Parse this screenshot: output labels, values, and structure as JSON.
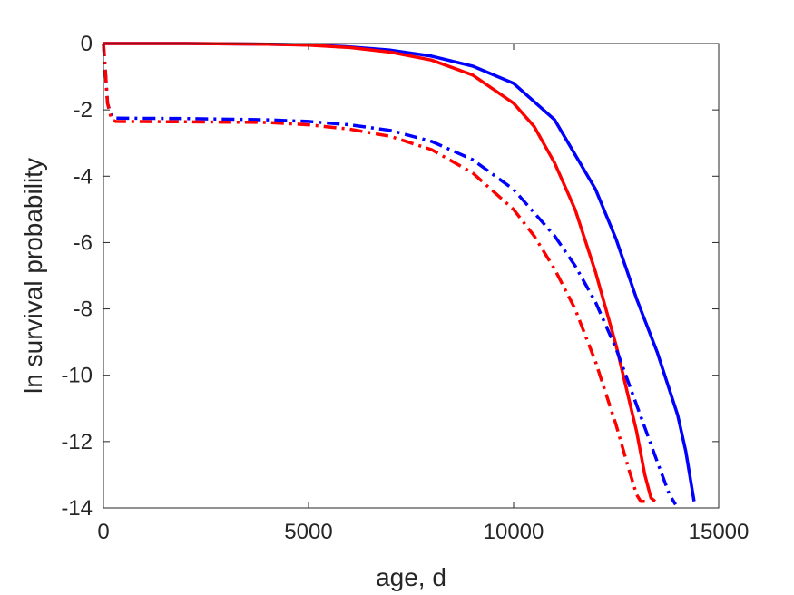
{
  "chart_data": {
    "type": "line",
    "title": "",
    "xlabel": "age, d",
    "ylabel": "ln survival probability",
    "xlim": [
      0,
      15000
    ],
    "ylim": [
      -14,
      0
    ],
    "xticks": [
      0,
      5000,
      10000,
      15000
    ],
    "xtick_labels": [
      "0",
      "5000",
      "10000",
      "15000"
    ],
    "yticks": [
      0,
      -2,
      -4,
      -6,
      -8,
      -10,
      -12,
      -14
    ],
    "ytick_labels": [
      "0",
      "-2",
      "-4",
      "-6",
      "-8",
      "-10",
      "-12",
      "-14"
    ],
    "grid": false,
    "legend": "none",
    "series": [
      {
        "color": "#0000ff",
        "linestyle": "solid",
        "x": [
          0,
          2000,
          4000,
          5000,
          6000,
          7000,
          8000,
          9000,
          10000,
          11000,
          12000,
          12500,
          13000,
          13500,
          14000,
          14200,
          14400
        ],
        "y": [
          0,
          0,
          -0.02,
          -0.04,
          -0.1,
          -0.2,
          -0.38,
          -0.68,
          -1.2,
          -2.3,
          -4.4,
          -5.9,
          -7.7,
          -9.3,
          -11.2,
          -12.3,
          -13.8
        ]
      },
      {
        "color": "#ff0000",
        "linestyle": "solid",
        "x": [
          0,
          2000,
          4000,
          5000,
          6000,
          7000,
          8000,
          9000,
          10000,
          10500,
          11000,
          11500,
          12000,
          12500,
          13000,
          13200,
          13350,
          13450
        ],
        "y": [
          0,
          0,
          -0.02,
          -0.05,
          -0.12,
          -0.26,
          -0.5,
          -0.95,
          -1.8,
          -2.5,
          -3.6,
          -5.0,
          -6.9,
          -9.1,
          -11.7,
          -13.0,
          -13.7,
          -13.8
        ]
      },
      {
        "color": "#0000ff",
        "linestyle": "dashdot",
        "x": [
          0,
          50,
          100,
          200,
          300,
          2000,
          4000,
          5000,
          6000,
          7000,
          8000,
          9000,
          10000,
          11000,
          11500,
          12000,
          12500,
          13000,
          13500,
          13800,
          13950
        ],
        "y": [
          0,
          -0.9,
          -1.8,
          -2.2,
          -2.25,
          -2.26,
          -2.3,
          -2.35,
          -2.45,
          -2.62,
          -2.95,
          -3.5,
          -4.4,
          -5.8,
          -6.7,
          -7.8,
          -9.2,
          -10.9,
          -12.6,
          -13.6,
          -13.9
        ]
      },
      {
        "color": "#ff0000",
        "linestyle": "dashdot",
        "x": [
          0,
          50,
          100,
          200,
          300,
          2000,
          4000,
          5000,
          6000,
          7000,
          8000,
          9000,
          10000,
          10500,
          11000,
          11500,
          12000,
          12500,
          12800,
          13000,
          13100,
          13200
        ],
        "y": [
          0,
          -0.9,
          -1.8,
          -2.3,
          -2.35,
          -2.36,
          -2.38,
          -2.45,
          -2.58,
          -2.8,
          -3.2,
          -3.9,
          -5.0,
          -5.8,
          -6.8,
          -8.0,
          -9.6,
          -11.5,
          -12.8,
          -13.6,
          -13.8,
          -13.8
        ]
      }
    ]
  }
}
